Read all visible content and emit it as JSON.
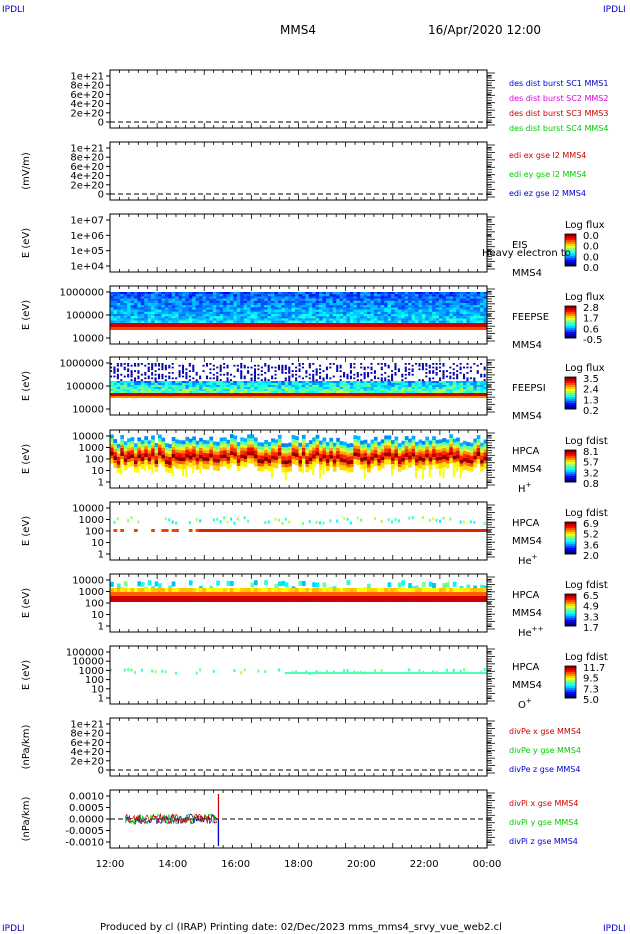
{
  "header": {
    "corner_label": "IPDLI",
    "mission": "MMS4",
    "datetime": "16/Apr/2020 12:00"
  },
  "footer": {
    "text": "Produced by cl (IRAP)   Printing date: 02/Dec/2023   mms_mms4_srvy_vue_web2.cl"
  },
  "colors": {
    "blue": "#0000cc",
    "magenta": "#dd00dd",
    "red": "#cc0000",
    "green": "#00cc00"
  },
  "chart_data": [
    {
      "type": "line",
      "ylabel": "",
      "y_ticks": [
        "1e+21",
        "8e+20",
        "6e+20",
        "4e+20",
        "2e+20",
        "0"
      ],
      "series": [
        {
          "name": "des dist burst SC1 MMS1",
          "color": "#0000cc"
        },
        {
          "name": "des dist burst SC2 MMS2",
          "color": "#dd00dd"
        },
        {
          "name": "des dist burst SC3 MMS3",
          "color": "#cc0000"
        },
        {
          "name": "des dist burst SC4 MMS4",
          "color": "#00cc00"
        }
      ],
      "zero_line": true
    },
    {
      "type": "line",
      "ylabel": "(mV/m)",
      "y_ticks": [
        "1e+21",
        "8e+20",
        "6e+20",
        "4e+20",
        "2e+20",
        "0"
      ],
      "series": [
        {
          "name": "edi ex gse l2 MMS4",
          "color": "#cc0000"
        },
        {
          "name": "edi ey gse l2 MMS4",
          "color": "#00cc00"
        },
        {
          "name": "edi ez gse l2 MMS4",
          "color": "#0000cc"
        }
      ],
      "zero_line": true
    },
    {
      "type": "heatmap",
      "ylabel": "E (eV)",
      "y_ticks": [
        "1e+07",
        "1e+06",
        "1e+05",
        "1e+04"
      ],
      "side_labels": [
        "EIS",
        "MMS4"
      ],
      "overlay_text": "Heavy electron to",
      "colorbar": {
        "title": "Log flux",
        "ticks": [
          "0.0",
          "0.0",
          "0.0",
          "0.0"
        ]
      }
    },
    {
      "type": "heatmap",
      "ylabel": "E (eV)",
      "y_ticks": [
        "1000000",
        "100000",
        "10000"
      ],
      "side_labels": [
        "FEEPSE",
        "MMS4"
      ],
      "colorbar": {
        "title": "Log flux",
        "ticks": [
          "2.8",
          "1.7",
          "0.6",
          "-0.5"
        ]
      }
    },
    {
      "type": "heatmap",
      "ylabel": "E (eV)",
      "y_ticks": [
        "1000000",
        "100000",
        "10000"
      ],
      "side_labels": [
        "FEEPSI",
        "MMS4"
      ],
      "colorbar": {
        "title": "Log flux",
        "ticks": [
          "3.5",
          "2.4",
          "1.3",
          "0.2"
        ]
      }
    },
    {
      "type": "heatmap",
      "ylabel": "E (eV)",
      "y_ticks": [
        "10000",
        "1000",
        "100",
        "10",
        "1"
      ],
      "side_labels": [
        "HPCA",
        "MMS4"
      ],
      "species": {
        "base": "H",
        "sup": "+"
      },
      "colorbar": {
        "title": "Log fdist",
        "ticks": [
          "8.1",
          "5.7",
          "3.2",
          "0.8"
        ]
      }
    },
    {
      "type": "heatmap",
      "ylabel": "E (eV)",
      "y_ticks": [
        "10000",
        "1000",
        "100",
        "10",
        "1"
      ],
      "side_labels": [
        "HPCA",
        "MMS4"
      ],
      "species": {
        "base": "He",
        "sup": "+"
      },
      "colorbar": {
        "title": "Log fdist",
        "ticks": [
          "6.9",
          "5.2",
          "3.6",
          "2.0"
        ]
      }
    },
    {
      "type": "heatmap",
      "ylabel": "E (eV)",
      "y_ticks": [
        "10000",
        "1000",
        "100",
        "10",
        "1"
      ],
      "side_labels": [
        "HPCA",
        "MMS4"
      ],
      "species": {
        "base": "He",
        "sup": "++"
      },
      "colorbar": {
        "title": "Log fdist",
        "ticks": [
          "6.5",
          "4.9",
          "3.3",
          "1.7"
        ]
      }
    },
    {
      "type": "heatmap",
      "ylabel": "E (eV)",
      "y_ticks": [
        "100000",
        "10000",
        "1000",
        "100",
        "10",
        "1"
      ],
      "side_labels": [
        "HPCA",
        "MMS4"
      ],
      "species": {
        "base": "O",
        "sup": "+"
      },
      "colorbar": {
        "title": "Log fdist",
        "ticks": [
          "11.7",
          "9.5",
          "7.3",
          "5.0"
        ]
      }
    },
    {
      "type": "line",
      "ylabel": "(nPa/km)",
      "y_ticks": [
        "1e+21",
        "8e+20",
        "6e+20",
        "4e+20",
        "2e+20",
        "0"
      ],
      "series": [
        {
          "name": "divPe x gse MMS4",
          "color": "#cc0000"
        },
        {
          "name": "divPe y gse MMS4",
          "color": "#00cc00"
        },
        {
          "name": "divPe z gse MMS4",
          "color": "#0000cc"
        }
      ],
      "zero_line": true
    },
    {
      "type": "line",
      "ylabel": "(nPa/km)",
      "y_ticks": [
        "0.0010",
        "0.0005",
        "0.0000",
        "-0.0005",
        "-0.0010"
      ],
      "series": [
        {
          "name": "divPi x gse MMS4",
          "color": "#cc0000"
        },
        {
          "name": "divPi y gse MMS4",
          "color": "#00cc00"
        },
        {
          "name": "divPi z gse MMS4",
          "color": "#0000cc"
        }
      ],
      "zero_line": true,
      "data_x_range": [
        "12:30",
        "15:25"
      ]
    }
  ],
  "x_axis": {
    "tick_labels": [
      "12:00",
      "14:00",
      "16:00",
      "18:00",
      "20:00",
      "22:00",
      "00:00"
    ]
  }
}
